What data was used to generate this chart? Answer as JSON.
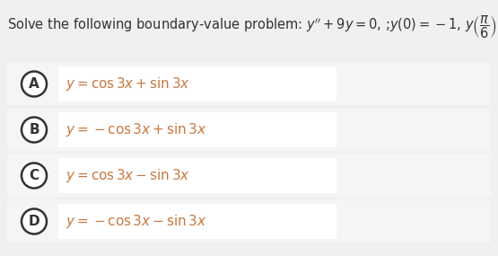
{
  "bg_color": "#f0f0f0",
  "panel_bg": "#f5f5f5",
  "white_box_color": "#ffffff",
  "circle_edge_color": "#333333",
  "text_color": "#444444",
  "math_color": "#c87840",
  "question_color": "#333333",
  "figsize": [
    5.55,
    2.85
  ],
  "dpi": 100,
  "question_fontsize": 10.5,
  "label_fontsize": 11,
  "option_fontsize": 11,
  "options": [
    {
      "label": "A",
      "expr": "$y = \\cos 3x + \\sin 3x$"
    },
    {
      "label": "B",
      "expr": "$y = -\\cos 3x + \\sin 3x$"
    },
    {
      "label": "C",
      "expr": "$y = \\cos 3x - \\sin 3x$"
    },
    {
      "label": "D",
      "expr": "$y = -\\cos 3x - \\sin 3x$"
    }
  ]
}
